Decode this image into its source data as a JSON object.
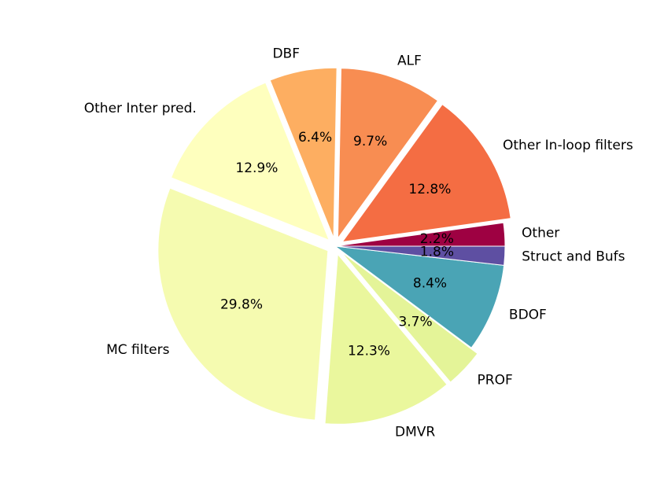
{
  "chart_data": {
    "type": "pie",
    "title": "",
    "start_angle_deg": 0,
    "direction": "counterclockwise",
    "slices": [
      {
        "label": "Other",
        "value": 2.2,
        "pct_label": "2.2%",
        "color": "#9e0142",
        "explode": 0.0
      },
      {
        "label": "Other In-loop filters",
        "value": 12.8,
        "pct_label": "12.8%",
        "color": "#f46d43",
        "explode": 0.05
      },
      {
        "label": "ALF",
        "value": 9.7,
        "pct_label": "9.7%",
        "color": "#f88d52",
        "explode": 0.05
      },
      {
        "label": "DBF",
        "value": 6.4,
        "pct_label": "6.4%",
        "color": "#fdae61",
        "explode": 0.05
      },
      {
        "label": "Other Inter pred.",
        "value": 12.9,
        "pct_label": "12.9%",
        "color": "#feffbe",
        "explode": 0.05
      },
      {
        "label": "MC filters",
        "value": 29.8,
        "pct_label": "29.8%",
        "color": "#f5fbb0",
        "explode": 0.05
      },
      {
        "label": "DMVR",
        "value": 12.3,
        "pct_label": "12.3%",
        "color": "#eaf79d",
        "explode": 0.05
      },
      {
        "label": "PROF",
        "value": 3.7,
        "pct_label": "3.7%",
        "color": "#e4f498",
        "explode": 0.05
      },
      {
        "label": "BDOF",
        "value": 8.4,
        "pct_label": "8.4%",
        "color": "#4aa4b5",
        "explode": 0.0
      },
      {
        "label": "Struct and Bufs",
        "value": 1.8,
        "pct_label": "1.8%",
        "color": "#5e4fa2",
        "explode": 0.0
      }
    ]
  }
}
